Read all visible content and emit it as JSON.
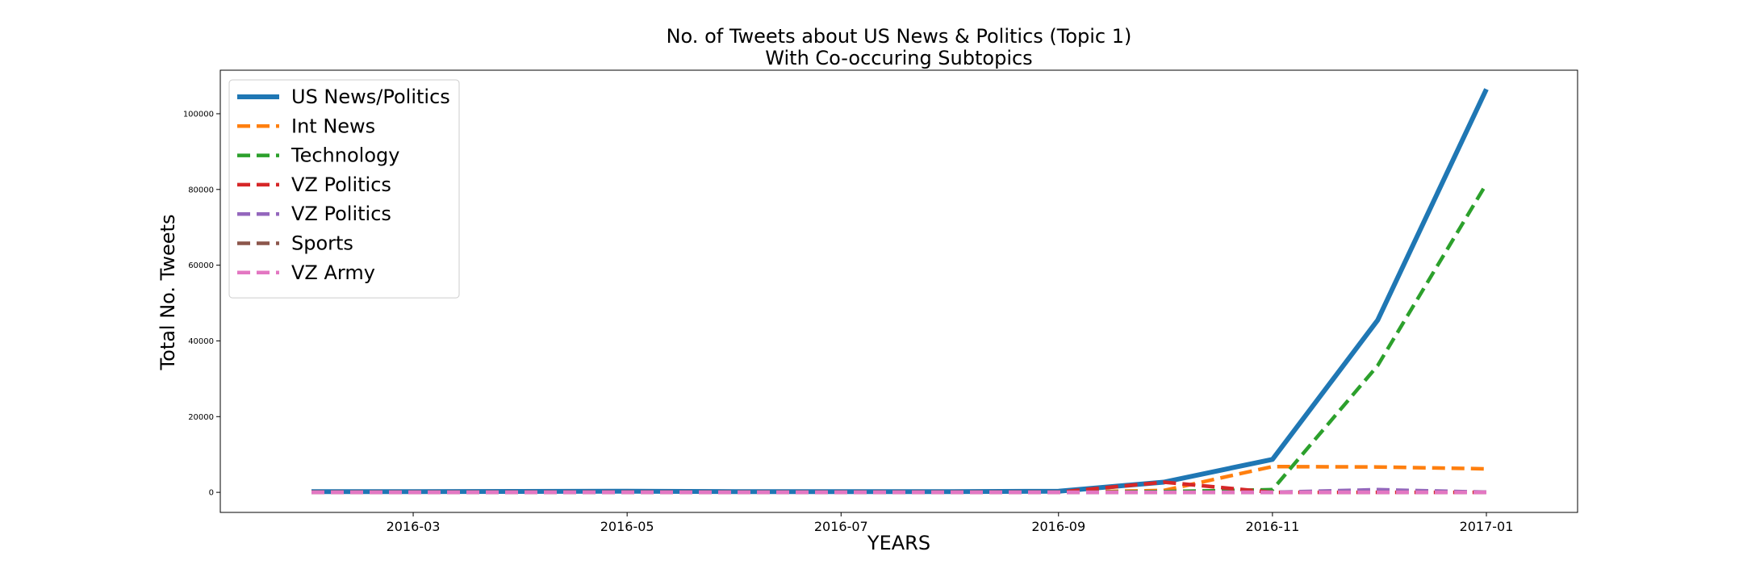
{
  "chart_data": {
    "type": "line",
    "title_lines": [
      "No. of Tweets about US News & Politics (Topic 1)",
      "With Co-occuring Subtopics"
    ],
    "xlabel": "YEARS",
    "ylabel": "Total No. Tweets",
    "x": [
      "2016-02-01",
      "2016-03-01",
      "2016-04-01",
      "2016-05-01",
      "2016-06-01",
      "2016-07-01",
      "2016-08-01",
      "2016-09-01",
      "2016-10-01",
      "2016-11-01",
      "2016-12-01",
      "2017-01-01"
    ],
    "xlim": [
      "2016-01-06",
      "2017-01-27"
    ],
    "xticks": [
      {
        "date": "2016-03-01",
        "label": "2016-03"
      },
      {
        "date": "2016-05-01",
        "label": "2016-05"
      },
      {
        "date": "2016-07-01",
        "label": "2016-07"
      },
      {
        "date": "2016-09-01",
        "label": "2016-09"
      },
      {
        "date": "2016-11-01",
        "label": "2016-11"
      },
      {
        "date": "2017-01-01",
        "label": "2017-01"
      }
    ],
    "ylim": [
      -5300,
      111500
    ],
    "yticks": [
      {
        "value": 0,
        "label": "0"
      },
      {
        "value": 20000,
        "label": "20000"
      },
      {
        "value": 40000,
        "label": "40000"
      },
      {
        "value": 60000,
        "label": "60000"
      },
      {
        "value": 80000,
        "label": "80000"
      },
      {
        "value": 100000,
        "label": "100000"
      }
    ],
    "grid": false,
    "legend_position": "upper-left",
    "series": [
      {
        "name": "US News/Politics",
        "color": "#1f77b4",
        "style": "solid",
        "values": [
          200,
          200,
          250,
          300,
          200,
          200,
          200,
          300,
          2700,
          8700,
          45500,
          106500
        ]
      },
      {
        "name": "Int News",
        "color": "#ff7f0e",
        "style": "dashed",
        "values": [
          50,
          50,
          50,
          80,
          50,
          50,
          50,
          50,
          500,
          6800,
          6700,
          6200
        ]
      },
      {
        "name": "Technology",
        "color": "#2ca02c",
        "style": "dashed",
        "values": [
          0,
          0,
          0,
          0,
          0,
          0,
          0,
          0,
          200,
          700,
          33500,
          81500
        ]
      },
      {
        "name": "VZ Politics",
        "color": "#d62728",
        "style": "dashed",
        "values": [
          50,
          50,
          50,
          50,
          50,
          50,
          50,
          50,
          2700,
          0,
          0,
          0
        ]
      },
      {
        "name": "VZ Politics",
        "color": "#9467bd",
        "style": "dashed",
        "values": [
          0,
          0,
          0,
          0,
          0,
          0,
          0,
          0,
          0,
          0,
          700,
          50
        ]
      },
      {
        "name": "Sports",
        "color": "#8c564b",
        "style": "dashed",
        "values": [
          0,
          0,
          0,
          0,
          0,
          0,
          0,
          0,
          0,
          0,
          0,
          0
        ]
      },
      {
        "name": "VZ Army",
        "color": "#e377c2",
        "style": "dashed",
        "values": [
          0,
          0,
          0,
          0,
          0,
          0,
          0,
          0,
          0,
          0,
          0,
          0
        ]
      }
    ]
  }
}
